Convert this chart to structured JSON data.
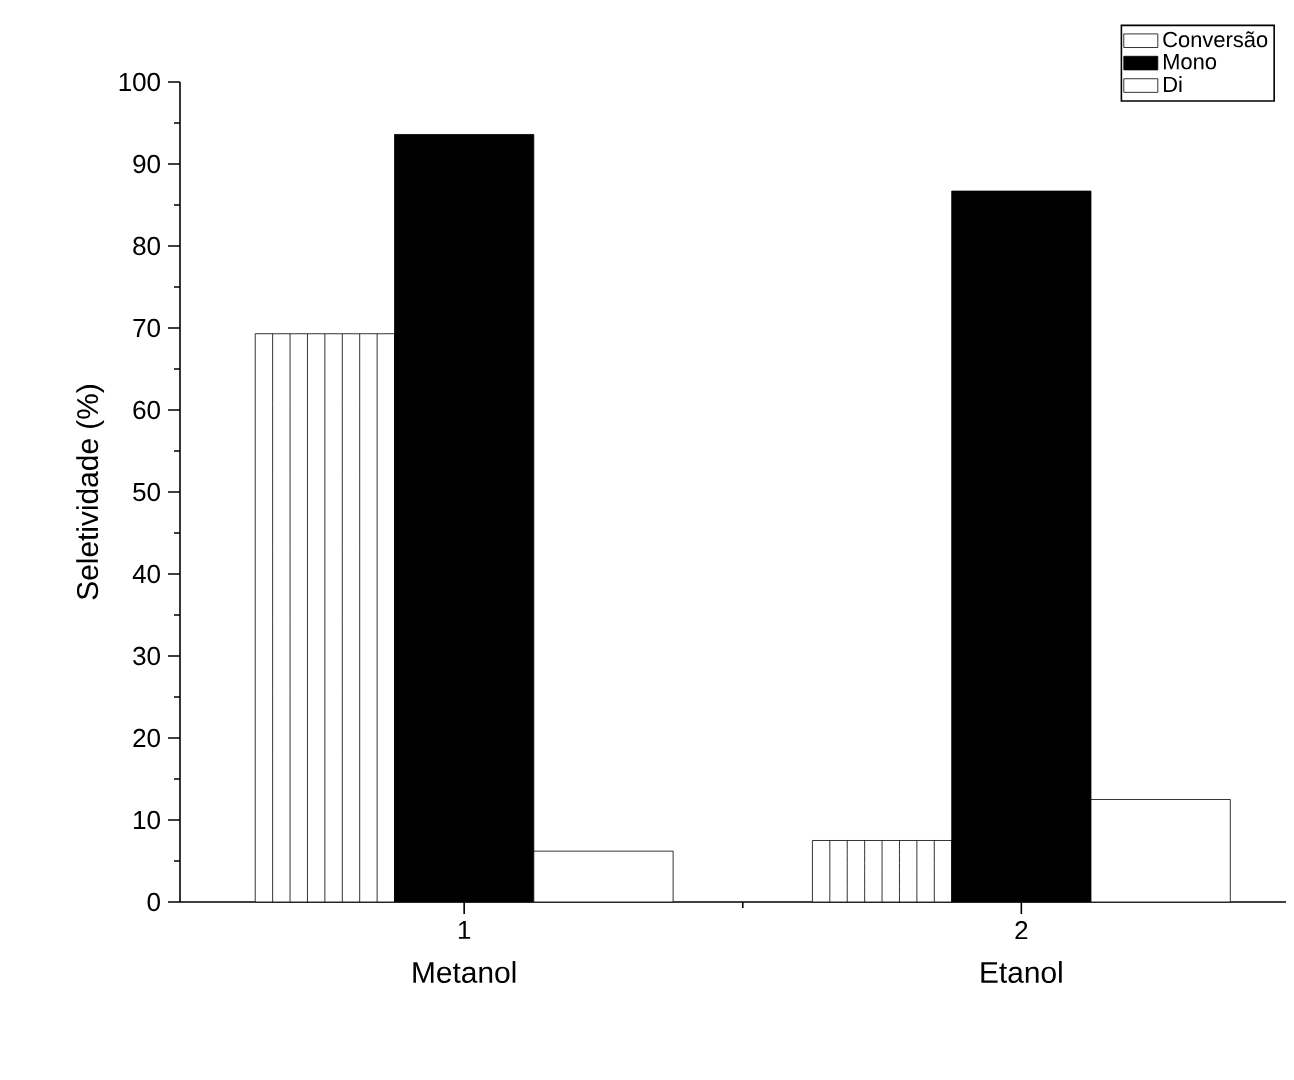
{
  "chart_data": {
    "type": "bar",
    "ylabel": "Seletividade (%)",
    "categories": [
      "1",
      "2"
    ],
    "series": [
      {
        "name": "Conversão",
        "color": "#ffffff",
        "values": [
          69.3,
          7.5
        ]
      },
      {
        "name": "Mono",
        "color": "#000000",
        "values": [
          93.6,
          86.7
        ]
      },
      {
        "name": "Di",
        "color": "#ffffff",
        "values": [
          6.2,
          12.5
        ]
      }
    ],
    "annotations": [
      "Metanol",
      "Etanol"
    ],
    "ylim": [
      0,
      100
    ],
    "yticks": [
      0,
      10,
      20,
      30,
      40,
      50,
      60,
      70,
      80,
      90,
      100
    ],
    "legend": "top right",
    "grid": false
  }
}
